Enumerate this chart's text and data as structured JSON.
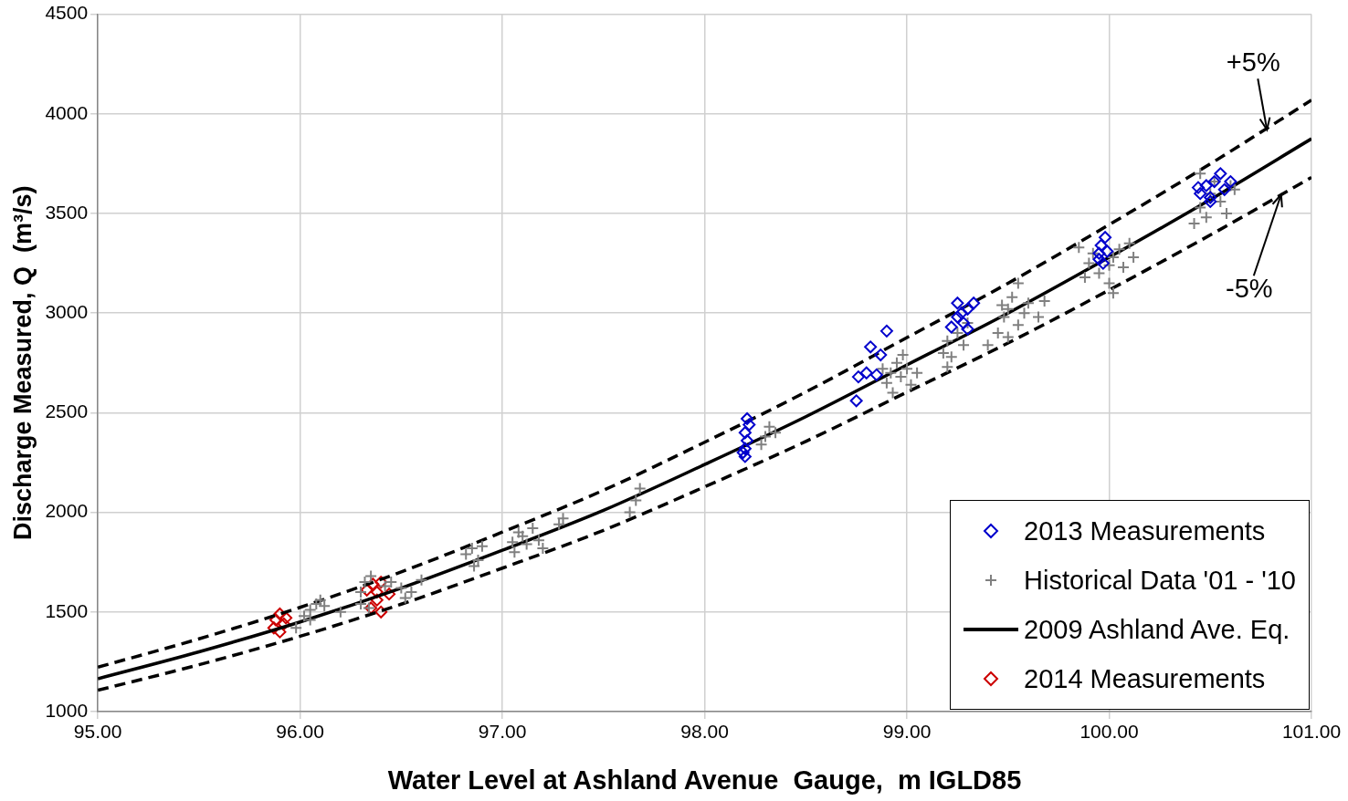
{
  "chart_data": {
    "type": "scatter",
    "xlabel": "Water Level at Ashland Avenue  Gauge,  m IGLD85",
    "ylabel": "Discharge Measured, Q  (m³/s)",
    "xlim": [
      95,
      101
    ],
    "xticks": [
      {
        "value": 95,
        "label": "95.00"
      },
      {
        "value": 96,
        "label": "96.00"
      },
      {
        "value": 97,
        "label": "97.00"
      },
      {
        "value": 98,
        "label": "98.00"
      },
      {
        "value": 99,
        "label": "99.00"
      },
      {
        "value": 100,
        "label": "100.00"
      },
      {
        "value": 101,
        "label": "101.00"
      }
    ],
    "ylim": [
      1000,
      4500
    ],
    "yticks": [
      1000,
      1500,
      2000,
      2500,
      3000,
      3500,
      4000,
      4500
    ],
    "grid": true,
    "legend": "bottom right",
    "annotations": [
      {
        "text": "+5%",
        "x": 100.78,
        "y": 3920
      },
      {
        "text": "-5%",
        "x": 100.85,
        "y": 3595
      }
    ],
    "series": [
      {
        "name": "2013 Measurements",
        "marker": "diamond",
        "color": "#0000cc",
        "x": [
          98.2,
          98.2,
          98.21,
          98.2,
          98.22,
          98.21,
          98.19,
          98.75,
          98.76,
          98.8,
          98.82,
          98.85,
          98.87,
          98.9,
          99.22,
          99.25,
          99.25,
          99.27,
          99.28,
          99.3,
          99.33,
          99.3,
          99.95,
          99.95,
          99.96,
          99.98,
          99.97,
          99.99,
          100.45,
          100.48,
          100.5,
          100.52,
          100.55,
          100.57,
          100.6,
          100.5,
          100.44
        ],
        "values": [
          2280,
          2320,
          2360,
          2400,
          2440,
          2470,
          2300,
          2560,
          2680,
          2700,
          2830,
          2690,
          2790,
          2910,
          2930,
          2980,
          3050,
          3000,
          2950,
          3020,
          3050,
          2920,
          3270,
          3300,
          3340,
          3380,
          3250,
          3310,
          3600,
          3640,
          3580,
          3660,
          3700,
          3620,
          3660,
          3560,
          3630
        ]
      },
      {
        "name": "Historical Data '01 - '10",
        "marker": "cross",
        "color": "#808080",
        "x": [
          96.02,
          96.05,
          96.08,
          96.1,
          96.12,
          95.98,
          96.05,
          96.3,
          96.32,
          96.35,
          96.3,
          96.34,
          96.45,
          96.5,
          96.55,
          96.6,
          96.52,
          96.42,
          96.2,
          96.82,
          96.85,
          96.88,
          96.86,
          96.9,
          97.05,
          97.08,
          97.1,
          97.12,
          97.15,
          97.18,
          97.2,
          97.06,
          97.3,
          97.28,
          97.63,
          97.66,
          97.68,
          98.3,
          98.32,
          98.28,
          98.35,
          98.9,
          98.92,
          98.95,
          98.97,
          99.0,
          99.02,
          98.93,
          98.98,
          99.05,
          98.88,
          99.18,
          99.2,
          99.22,
          99.25,
          99.28,
          99.3,
          99.2,
          99.4,
          99.45,
          99.48,
          99.5,
          99.52,
          99.55,
          99.5,
          99.55,
          99.6,
          99.65,
          99.68,
          99.58,
          99.47,
          99.88,
          99.9,
          99.92,
          99.95,
          100.0,
          100.02,
          100.05,
          100.07,
          100.1,
          100.02,
          100.0,
          100.12,
          99.85,
          100.42,
          100.45,
          100.5,
          100.48,
          100.55,
          100.58,
          100.6,
          100.62,
          100.45,
          100.52
        ],
        "values": [
          1480,
          1510,
          1540,
          1560,
          1530,
          1420,
          1460,
          1600,
          1650,
          1680,
          1540,
          1520,
          1650,
          1620,
          1600,
          1660,
          1570,
          1630,
          1500,
          1790,
          1820,
          1760,
          1730,
          1830,
          1850,
          1900,
          1880,
          1840,
          1920,
          1860,
          1820,
          1800,
          1970,
          1940,
          2000,
          2060,
          2120,
          2380,
          2430,
          2340,
          2400,
          2650,
          2700,
          2750,
          2680,
          2720,
          2640,
          2600,
          2790,
          2700,
          2720,
          2800,
          2860,
          2780,
          2900,
          2840,
          2950,
          2730,
          2840,
          2900,
          2980,
          3020,
          3080,
          2940,
          2880,
          3150,
          3050,
          2980,
          3060,
          3000,
          3040,
          3180,
          3250,
          3300,
          3200,
          3150,
          3280,
          3320,
          3230,
          3350,
          3100,
          3240,
          3280,
          3330,
          3450,
          3530,
          3600,
          3480,
          3560,
          3500,
          3640,
          3620,
          3700,
          3660
        ]
      },
      {
        "name": "2009 Ashland Ave. Eq.",
        "type": "line",
        "marker": "none",
        "line_style": "solid",
        "color": "#000000",
        "x": [
          95,
          95.5,
          96,
          96.5,
          97,
          97.5,
          98,
          98.5,
          99,
          99.5,
          100,
          100.5,
          101
        ],
        "values": [
          1165,
          1300,
          1450,
          1620,
          1810,
          2010,
          2240,
          2480,
          2740,
          3000,
          3280,
          3570,
          3875
        ]
      },
      {
        "type": "line",
        "marker": "none",
        "line_style": "dashed",
        "color": "#000000",
        "x": [
          95,
          95.5,
          96,
          96.5,
          97,
          97.5,
          98,
          98.5,
          99,
          99.5,
          100,
          100.5,
          101
        ],
        "values": [
          1223,
          1365,
          1523,
          1701,
          1901,
          2111,
          2352,
          2604,
          2877,
          3150,
          3444,
          3749,
          4069
        ]
      },
      {
        "type": "line",
        "marker": "none",
        "line_style": "dashed",
        "color": "#000000",
        "x": [
          95,
          95.5,
          96,
          96.5,
          97,
          97.5,
          98,
          98.5,
          99,
          99.5,
          100,
          100.5,
          101
        ],
        "values": [
          1107,
          1235,
          1378,
          1539,
          1720,
          1910,
          2128,
          2356,
          2603,
          2850,
          3116,
          3392,
          3681
        ]
      },
      {
        "name": "2014 Measurements",
        "marker": "diamond",
        "color": "#cc0000",
        "x": [
          95.88,
          95.9,
          95.92,
          95.9,
          95.93,
          95.87,
          96.35,
          96.38,
          96.4,
          96.33,
          96.38,
          96.4,
          96.36,
          96.44
        ],
        "values": [
          1460,
          1490,
          1440,
          1400,
          1470,
          1420,
          1520,
          1600,
          1650,
          1610,
          1560,
          1500,
          1640,
          1590
        ]
      }
    ]
  }
}
